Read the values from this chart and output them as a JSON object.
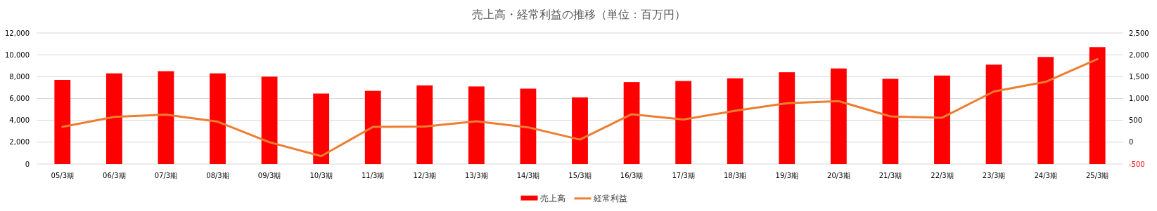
{
  "chart_data": {
    "type": "bar",
    "title": "売上高・経常利益の推移（単位：百万円）",
    "categories": [
      "05/3期",
      "06/3期",
      "07/3期",
      "08/3期",
      "09/3期",
      "10/3期",
      "11/3期",
      "12/3期",
      "13/3期",
      "14/3期",
      "15/3期",
      "16/3期",
      "17/3期",
      "18/3期",
      "19/3期",
      "20/3期",
      "21/3期",
      "22/3期",
      "23/3期",
      "24/3期",
      "25/3期"
    ],
    "series": [
      {
        "name": "売上高",
        "color": "#ff0000",
        "values": [
          7700,
          8300,
          8500,
          8300,
          8000,
          6450,
          6700,
          7200,
          7100,
          6900,
          6100,
          7500,
          7600,
          7850,
          8400,
          8750,
          7800,
          8100,
          9100,
          9800,
          10700
        ]
      },
      {
        "name": "経常利益",
        "type": "line",
        "axis": "y2",
        "color": "#ed7d31",
        "values": [
          350,
          580,
          630,
          470,
          0,
          -320,
          350,
          360,
          480,
          340,
          60,
          640,
          520,
          720,
          890,
          940,
          590,
          560,
          1160,
          1380,
          1900
        ]
      }
    ],
    "ylim": [
      0,
      12000
    ],
    "yticks": [
      {
        "value": 0,
        "label": "0"
      },
      {
        "value": 2000,
        "label": "2,000"
      },
      {
        "value": 4000,
        "label": "4,000"
      },
      {
        "value": 6000,
        "label": "6,000"
      },
      {
        "value": 8000,
        "label": "8,000"
      },
      {
        "value": 10000,
        "label": "10,000"
      },
      {
        "value": 12000,
        "label": "12,000"
      }
    ],
    "y2lim": [
      -500,
      2500
    ],
    "y2ticks": [
      {
        "value": -500,
        "label": "-500"
      },
      {
        "value": 0,
        "label": "0"
      },
      {
        "value": 500,
        "label": "500"
      },
      {
        "value": 1000,
        "label": "1,000"
      },
      {
        "value": 1500,
        "label": "1,500"
      },
      {
        "value": 2000,
        "label": "2,000"
      },
      {
        "value": 2500,
        "label": "2,500"
      }
    ],
    "grid": "y",
    "legend": "bottom",
    "marker": "none",
    "line_style": "solid"
  }
}
